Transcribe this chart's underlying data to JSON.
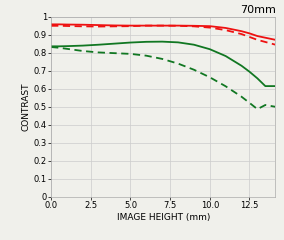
{
  "title": "70mm",
  "xlabel": "IMAGE HEIGHT (mm)",
  "ylabel": "CONTRAST",
  "xlim": [
    0,
    14.14
  ],
  "ylim": [
    0,
    1.0
  ],
  "xticks": [
    0,
    2.5,
    5,
    7.5,
    10,
    12.5
  ],
  "yticks": [
    0,
    0.1,
    0.2,
    0.3,
    0.4,
    0.5,
    0.6,
    0.7,
    0.8,
    0.9,
    1
  ],
  "red_solid_x": [
    0,
    0.5,
    1.0,
    2.0,
    3.0,
    4.0,
    5.0,
    6.0,
    7.0,
    8.0,
    9.0,
    10.0,
    11.0,
    12.0,
    12.5,
    13.0,
    14.14
  ],
  "red_solid_y": [
    0.958,
    0.958,
    0.957,
    0.956,
    0.954,
    0.952,
    0.951,
    0.951,
    0.951,
    0.951,
    0.95,
    0.948,
    0.938,
    0.92,
    0.908,
    0.893,
    0.872
  ],
  "red_dashed_x": [
    0,
    0.5,
    1.0,
    2.0,
    3.0,
    4.0,
    5.0,
    6.0,
    7.0,
    8.0,
    9.0,
    10.0,
    11.0,
    12.0,
    12.5,
    13.0,
    14.14
  ],
  "red_dashed_y": [
    0.95,
    0.95,
    0.949,
    0.947,
    0.946,
    0.947,
    0.948,
    0.951,
    0.951,
    0.95,
    0.947,
    0.94,
    0.926,
    0.904,
    0.888,
    0.872,
    0.845
  ],
  "green_solid_x": [
    0,
    0.5,
    1.0,
    2.0,
    3.0,
    4.0,
    5.0,
    6.0,
    7.0,
    8.0,
    9.0,
    10.0,
    11.0,
    12.0,
    12.5,
    13.0,
    13.5,
    14.14
  ],
  "green_solid_y": [
    0.836,
    0.836,
    0.837,
    0.84,
    0.845,
    0.851,
    0.857,
    0.861,
    0.862,
    0.858,
    0.845,
    0.82,
    0.782,
    0.728,
    0.695,
    0.658,
    0.615,
    0.615
  ],
  "green_dashed_x": [
    0,
    0.5,
    1.0,
    2.0,
    3.0,
    4.0,
    5.0,
    6.0,
    7.0,
    8.0,
    9.0,
    10.0,
    11.0,
    12.0,
    12.5,
    13.0,
    13.5,
    14.14
  ],
  "green_dashed_y": [
    0.832,
    0.828,
    0.822,
    0.81,
    0.802,
    0.798,
    0.794,
    0.784,
    0.766,
    0.74,
    0.706,
    0.664,
    0.614,
    0.556,
    0.522,
    0.487,
    0.51,
    0.5
  ],
  "red_color": "#ee1111",
  "green_color": "#117722",
  "bg_color": "#f0f0eb",
  "grid_color": "#cccccc",
  "title_fontsize": 8,
  "label_fontsize": 6.5,
  "tick_fontsize": 6,
  "line_width": 1.3
}
